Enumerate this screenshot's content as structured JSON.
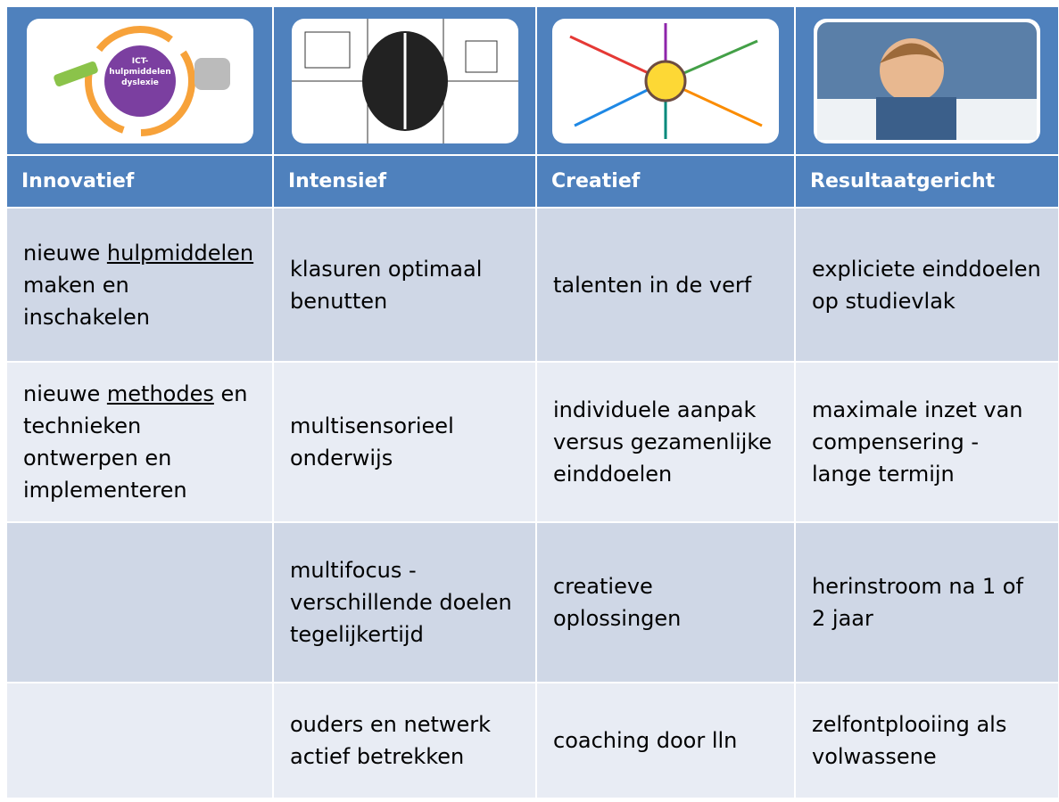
{
  "image_captions": [
    "ICT-hulpmiddelen dyslexie"
  ],
  "table": {
    "header": [
      "Innovatief",
      "Intensief",
      "Creatief",
      "Resultaatgericht"
    ],
    "rows": [
      [
        [
          "nieuwe ",
          "hulpmiddelen",
          " maken en inschakelen"
        ],
        [
          "klasuren optimaal benutten"
        ],
        [
          "talenten in de verf"
        ],
        [
          "expliciete einddoelen op studievlak"
        ]
      ],
      [
        [
          "nieuwe ",
          "methodes",
          " en technieken ontwerpen en implementeren"
        ],
        [
          "multisensorieel onderwijs"
        ],
        [
          "individuele aanpak versus gezamenlijke einddoelen"
        ],
        [
          "maximale inzet van compensering - lange termijn"
        ]
      ],
      [
        null,
        [
          "multifocus - verschillende doelen tegelijkertijd"
        ],
        [
          "creatieve oplossingen"
        ],
        [
          "herinstroom na 1 of 2 jaar"
        ]
      ],
      [
        null,
        [
          "ouders en netwerk actief betrekken"
        ],
        [
          "coaching door lln"
        ],
        [
          "zelfontplooiing als volwassene"
        ]
      ]
    ]
  }
}
